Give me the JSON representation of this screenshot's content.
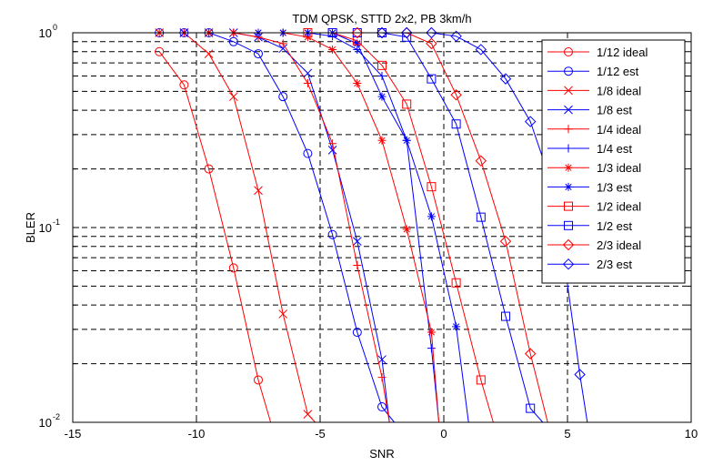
{
  "chart_data": {
    "type": "line",
    "title": "TDM QPSK, STTD 2x2, PB 3km/h",
    "xlabel": "SNR",
    "ylabel": "BLER",
    "xlim": [
      -15,
      10
    ],
    "ylim": [
      0.01,
      1
    ],
    "yscale": "log",
    "grid": true,
    "legend_position": "top-right",
    "x_ticks": [
      -15,
      -10,
      -5,
      0,
      5,
      10
    ],
    "x_tick_labels": [
      "-15",
      "-10",
      "-5",
      "0",
      "5",
      "10"
    ],
    "y_ticks": [
      0.01,
      0.1,
      1
    ],
    "y_tick_labels": [
      {
        "base": "10",
        "exp": "-2"
      },
      {
        "base": "10",
        "exp": "-1"
      },
      {
        "base": "10",
        "exp": "0"
      }
    ],
    "series": [
      {
        "name": "1/12 ideal",
        "color": "#ff0000",
        "marker": "circle",
        "x": [
          -11.5,
          -10.5,
          -9.5,
          -8.5,
          -7.5,
          -7.0
        ],
        "y": [
          0.8,
          0.54,
          0.2,
          0.062,
          0.0165,
          0.01
        ]
      },
      {
        "name": "1/12 est",
        "color": "#0000ff",
        "marker": "circle",
        "x": [
          -11.5,
          -10.5,
          -9.5,
          -8.5,
          -7.5,
          -6.5,
          -5.5,
          -4.5,
          -3.5,
          -2.5,
          -2.0
        ],
        "y": [
          1.0,
          1.0,
          1.0,
          0.9,
          0.78,
          0.47,
          0.24,
          0.092,
          0.029,
          0.012,
          0.01
        ]
      },
      {
        "name": "1/8 ideal",
        "color": "#ff0000",
        "marker": "x",
        "x": [
          -11.5,
          -10.5,
          -9.5,
          -8.5,
          -7.5,
          -6.5,
          -5.5,
          -5.2
        ],
        "y": [
          1.0,
          1.0,
          0.78,
          0.47,
          0.155,
          0.036,
          0.011,
          0.01
        ]
      },
      {
        "name": "1/8 est",
        "color": "#0000ff",
        "marker": "x",
        "x": [
          -10.5,
          -9.5,
          -8.5,
          -7.5,
          -6.5,
          -5.5,
          -4.5,
          -3.5,
          -2.5,
          -2.2
        ],
        "y": [
          1.0,
          1.0,
          1.0,
          0.95,
          0.83,
          0.62,
          0.25,
          0.085,
          0.021,
          0.01
        ]
      },
      {
        "name": "1/4 ideal",
        "color": "#ff0000",
        "marker": "plus",
        "x": [
          -11.5,
          -10.5,
          -9.5,
          -8.5,
          -7.5,
          -6.5,
          -5.5,
          -4.5,
          -3.5,
          -2.5,
          -2.2
        ],
        "y": [
          1.0,
          1.0,
          1.0,
          1.0,
          0.95,
          0.88,
          0.55,
          0.27,
          0.064,
          0.017,
          0.01
        ]
      },
      {
        "name": "1/4 est",
        "color": "#0000ff",
        "marker": "plus",
        "x": [
          -9.5,
          -8.5,
          -7.5,
          -6.5,
          -5.5,
          -4.5,
          -3.5,
          -2.5,
          -1.5,
          -0.5,
          -0.2
        ],
        "y": [
          1.0,
          1.0,
          1.0,
          1.0,
          1.0,
          0.96,
          0.82,
          0.6,
          0.28,
          0.024,
          0.01
        ]
      },
      {
        "name": "1/3 ideal",
        "color": "#ff0000",
        "marker": "asterisk",
        "x": [
          -9.5,
          -8.5,
          -7.5,
          -6.5,
          -5.5,
          -4.5,
          -3.5,
          -2.5,
          -1.5,
          -0.5,
          -0.2
        ],
        "y": [
          1.0,
          1.0,
          1.0,
          1.0,
          0.95,
          0.82,
          0.55,
          0.28,
          0.098,
          0.029,
          0.01
        ]
      },
      {
        "name": "1/3 est",
        "color": "#0000ff",
        "marker": "asterisk",
        "x": [
          -7.5,
          -6.5,
          -5.5,
          -4.5,
          -3.5,
          -2.5,
          -1.5,
          -0.5,
          0.5,
          1.0
        ],
        "y": [
          1.0,
          1.0,
          1.0,
          1.0,
          0.88,
          0.47,
          0.28,
          0.114,
          0.031,
          0.01
        ]
      },
      {
        "name": "1/2 ideal",
        "color": "#ff0000",
        "marker": "square",
        "x": [
          -5.5,
          -4.5,
          -3.5,
          -2.5,
          -1.5,
          -0.5,
          0.5,
          1.5,
          2.0
        ],
        "y": [
          1.0,
          1.0,
          0.91,
          0.68,
          0.43,
          0.162,
          0.052,
          0.0165,
          0.01
        ]
      },
      {
        "name": "1/2 est",
        "color": "#0000ff",
        "marker": "square",
        "x": [
          -4.5,
          -3.5,
          -2.5,
          -1.5,
          -0.5,
          0.5,
          1.5,
          2.5,
          3.5,
          4.0
        ],
        "y": [
          1.0,
          1.0,
          1.0,
          0.95,
          0.58,
          0.34,
          0.113,
          0.035,
          0.0118,
          0.01
        ]
      },
      {
        "name": "2/3 ideal",
        "color": "#ff0000",
        "marker": "diamond",
        "x": [
          -3.5,
          -2.5,
          -1.5,
          -0.5,
          0.5,
          1.5,
          2.5,
          3.5,
          4.2
        ],
        "y": [
          1.0,
          1.0,
          1.0,
          0.88,
          0.48,
          0.22,
          0.085,
          0.0225,
          0.01
        ]
      },
      {
        "name": "2/3 est",
        "color": "#0000ff",
        "marker": "diamond",
        "x": [
          -2.5,
          -1.5,
          -0.5,
          0.5,
          1.5,
          2.5,
          3.5,
          4.5,
          5.5,
          5.8
        ],
        "y": [
          1.0,
          1.0,
          1.0,
          0.96,
          0.82,
          0.58,
          0.35,
          0.148,
          0.0176,
          0.01
        ]
      }
    ]
  }
}
